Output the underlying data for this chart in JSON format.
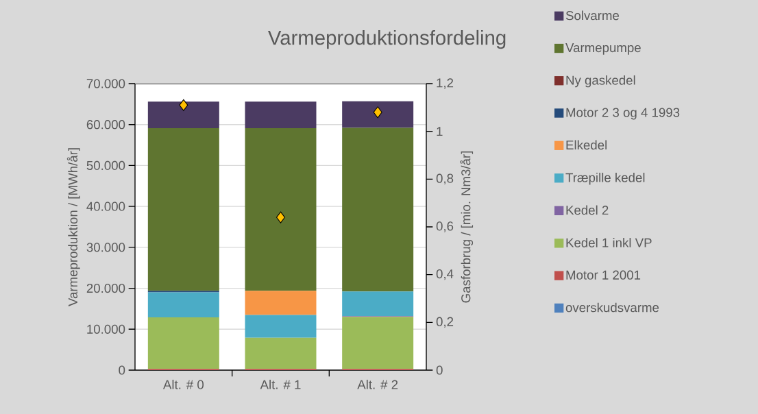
{
  "chart_data": {
    "type": "bar",
    "title": "Varmeproduktionsfordeling",
    "ylabel": "Varmeproduktion / [MWh/år]",
    "y2label": "Gasforbrug / [mio. Nm3/år]",
    "categories": [
      "Alt. # 0",
      "Alt. # 1",
      "Alt. # 2"
    ],
    "stacked": true,
    "grid": "y",
    "legend": "right",
    "ylim": [
      0,
      70000
    ],
    "yticks": [
      0,
      {
        "value": 10000,
        "label": "10.000"
      },
      {
        "value": 20000,
        "label": "20.000"
      },
      {
        "value": 30000,
        "label": "30.000"
      },
      {
        "value": 40000,
        "label": "40.000"
      },
      {
        "value": 50000,
        "label": "50.000"
      },
      {
        "value": 60000,
        "label": "60.000"
      },
      {
        "value": 70000,
        "label": "70.000"
      }
    ],
    "y2lim": [
      0,
      1.2
    ],
    "y2ticks": [
      0,
      {
        "value": 0.2,
        "label": "0,2"
      },
      {
        "value": 0.4,
        "label": "0,4"
      },
      {
        "value": 0.6,
        "label": "0,6"
      },
      {
        "value": 0.8,
        "label": "0,8"
      },
      1,
      {
        "value": 1.2,
        "label": "1,2"
      }
    ],
    "series": [
      {
        "name": "overskudsvarme",
        "color": "#4f81bd",
        "values": [
          0,
          0,
          0
        ]
      },
      {
        "name": "Motor 1 2001",
        "color": "#c0504d",
        "values": [
          300,
          300,
          300
        ]
      },
      {
        "name": "Kedel 1 inkl VP",
        "color": "#9bbb59",
        "values": [
          12600,
          7600,
          12700
        ]
      },
      {
        "name": "Kedel 2",
        "color": "#8064a2",
        "values": [
          0,
          0,
          200
        ]
      },
      {
        "name": "Træpille kedel",
        "color": "#4bacc6",
        "values": [
          6100,
          5600,
          6000
        ]
      },
      {
        "name": "Elkedel",
        "color": "#f79646",
        "values": [
          0,
          5900,
          0
        ]
      },
      {
        "name": "Motor 2 3 og 4 1993",
        "color": "#254b7b",
        "values": [
          400,
          0,
          0
        ]
      },
      {
        "name": "Ny gaskedel",
        "color": "#7f2f2c",
        "values": [
          0,
          0,
          0
        ]
      },
      {
        "name": "Varmepumpe",
        "color": "#5f7530",
        "values": [
          39700,
          39700,
          40000
        ]
      },
      {
        "name": "Solvarme",
        "color": "#4b3b62",
        "values": [
          6500,
          6500,
          6500
        ]
      },
      {
        "type": "scatter",
        "axis": "y2",
        "marker": "diamond",
        "color": "#ffc000",
        "values": [
          1.11,
          0.64,
          1.08
        ]
      }
    ]
  }
}
